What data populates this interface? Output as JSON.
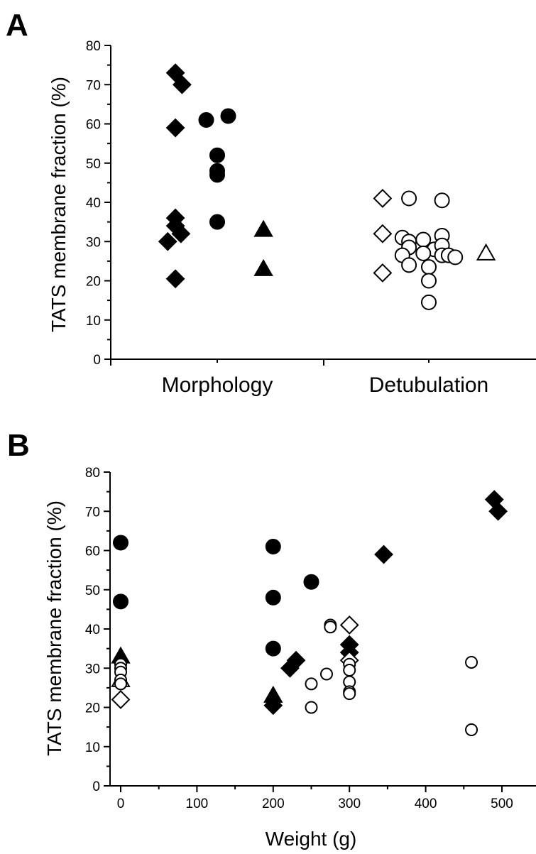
{
  "chart_data": [
    {
      "panel": "A",
      "type": "scatter",
      "ylabel": "TATS membrane fraction (%)",
      "ylim": [
        0,
        80
      ],
      "yticks": [
        0,
        10,
        20,
        30,
        40,
        50,
        60,
        70,
        80
      ],
      "categories": [
        "Morphology",
        "Detubulation"
      ],
      "series": [
        {
          "marker": "diamond",
          "filled": true,
          "category": "Morphology",
          "points": [
            [
              -0.38,
              73
            ],
            [
              -0.32,
              70
            ],
            [
              -0.38,
              59
            ],
            [
              -0.38,
              36
            ],
            [
              -0.38,
              34
            ],
            [
              -0.33,
              32
            ],
            [
              -0.45,
              30
            ],
            [
              -0.38,
              20.5
            ]
          ]
        },
        {
          "marker": "circle",
          "filled": true,
          "category": "Morphology",
          "points": [
            [
              -0.1,
              61
            ],
            [
              0.1,
              62
            ],
            [
              0,
              52
            ],
            [
              0,
              48
            ],
            [
              0,
              47
            ],
            [
              0,
              35
            ]
          ]
        },
        {
          "marker": "triangle",
          "filled": true,
          "category": "Morphology",
          "points": [
            [
              0.42,
              33
            ],
            [
              0.42,
              23
            ]
          ]
        },
        {
          "marker": "diamond",
          "filled": false,
          "category": "Detubulation",
          "points": [
            [
              -0.42,
              41
            ],
            [
              -0.42,
              32
            ],
            [
              -0.42,
              22
            ]
          ]
        },
        {
          "marker": "circle",
          "filled": false,
          "category": "Detubulation",
          "points": [
            [
              -0.18,
              41
            ],
            [
              0.12,
              40.5
            ],
            [
              -0.24,
              31
            ],
            [
              -0.18,
              30
            ],
            [
              -0.05,
              30.5
            ],
            [
              0.12,
              31.5
            ],
            [
              -0.18,
              28.5
            ],
            [
              0.05,
              28
            ],
            [
              0.12,
              29
            ],
            [
              -0.24,
              26.5
            ],
            [
              -0.05,
              27
            ],
            [
              0.12,
              26.5
            ],
            [
              0.18,
              26.5
            ],
            [
              0.24,
              26
            ],
            [
              -0.18,
              24
            ],
            [
              0,
              23.5
            ],
            [
              0,
              20
            ],
            [
              0,
              14.5
            ]
          ]
        },
        {
          "marker": "triangle",
          "filled": false,
          "category": "Detubulation",
          "points": [
            [
              0.52,
              27
            ]
          ]
        }
      ]
    },
    {
      "panel": "B",
      "type": "scatter",
      "xlabel": "Weight (g)",
      "ylabel": "TATS membrane fraction (%)",
      "xlim": [
        -15,
        540
      ],
      "ylim": [
        0,
        80
      ],
      "xticks": [
        0,
        100,
        200,
        300,
        400,
        500
      ],
      "yticks": [
        0,
        10,
        20,
        30,
        40,
        50,
        60,
        70,
        80
      ],
      "series": [
        {
          "marker": "circle",
          "filled": true,
          "size": "large",
          "points": [
            [
              0,
              62
            ],
            [
              0,
              47
            ],
            [
              200,
              61
            ],
            [
              200,
              48
            ],
            [
              250,
              52
            ],
            [
              200,
              35
            ]
          ]
        },
        {
          "marker": "diamond",
          "filled": true,
          "points": [
            [
              490,
              73
            ],
            [
              495,
              70
            ],
            [
              345,
              59
            ],
            [
              300,
              36
            ],
            [
              300,
              34
            ],
            [
              230,
              32
            ],
            [
              222,
              30
            ],
            [
              200,
              20.5
            ]
          ]
        },
        {
          "marker": "triangle",
          "filled": true,
          "points": [
            [
              0,
              33
            ],
            [
              200,
              23
            ]
          ]
        },
        {
          "marker": "diamond",
          "filled": false,
          "points": [
            [
              300,
              41
            ],
            [
              300,
              32
            ],
            [
              0,
              22
            ]
          ]
        },
        {
          "marker": "triangle",
          "filled": false,
          "points": [
            [
              0,
              27
            ]
          ]
        },
        {
          "marker": "circle",
          "filled": false,
          "size": "small",
          "points": [
            [
              0,
              31
            ],
            [
              0,
              30
            ],
            [
              0,
              29
            ],
            [
              0,
              27
            ],
            [
              0,
              26
            ],
            [
              275,
              41
            ],
            [
              275,
              40.5
            ],
            [
              460,
              31.5
            ],
            [
              300,
              31
            ],
            [
              300,
              29.5
            ],
            [
              300,
              26.5
            ],
            [
              300,
              24
            ],
            [
              300,
              23.5
            ],
            [
              270,
              28.5
            ],
            [
              250,
              26
            ],
            [
              250,
              20
            ],
            [
              460,
              14.3
            ]
          ]
        }
      ]
    }
  ]
}
